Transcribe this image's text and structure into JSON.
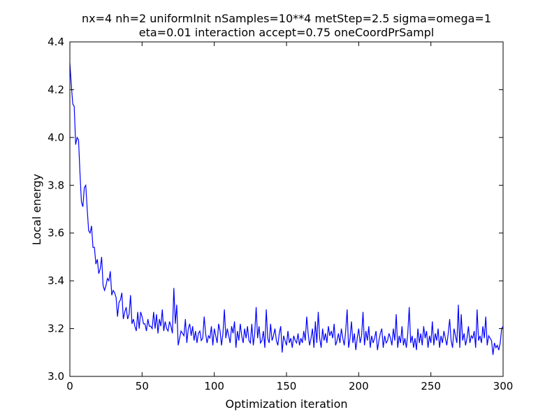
{
  "chart_data": {
    "type": "line",
    "title": [
      "nx=4 nh=2 uniformInit nSamples=10**4 metStep=2.5 sigma=omega=1",
      "eta=0.01 interaction accept=0.75 oneCoordPrSampl"
    ],
    "x_label": "Optimization iteration",
    "y_label": "Local energy",
    "xlim": [
      0,
      300
    ],
    "xticks": [
      0,
      50,
      100,
      150,
      200,
      250,
      300
    ],
    "ylim": [
      3.0,
      4.4
    ],
    "yticks": [
      {
        "value": 3.0,
        "label": "3.0"
      },
      3.2,
      3.4,
      3.6,
      3.8,
      {
        "value": 4.0,
        "label": "4.0"
      },
      4.2,
      4.4
    ],
    "grid": false,
    "x": [
      0,
      1,
      2,
      3,
      4,
      5,
      6,
      7,
      8,
      9,
      10,
      11,
      12,
      13,
      14,
      15,
      16,
      17,
      18,
      19,
      20,
      21,
      22,
      23,
      24,
      25,
      26,
      27,
      28,
      29,
      30,
      31,
      32,
      33,
      34,
      35,
      36,
      37,
      38,
      39,
      40,
      41,
      42,
      43,
      44,
      45,
      46,
      47,
      48,
      49,
      50,
      51,
      52,
      53,
      54,
      55,
      56,
      57,
      58,
      59,
      60,
      61,
      62,
      63,
      64,
      65,
      66,
      67,
      68,
      69,
      70,
      71,
      72,
      73,
      74,
      75,
      76,
      77,
      78,
      79,
      80,
      81,
      82,
      83,
      84,
      85,
      86,
      87,
      88,
      89,
      90,
      91,
      92,
      93,
      94,
      95,
      96,
      97,
      98,
      99,
      100,
      101,
      102,
      103,
      104,
      105,
      106,
      107,
      108,
      109,
      110,
      111,
      112,
      113,
      114,
      115,
      116,
      117,
      118,
      119,
      120,
      121,
      122,
      123,
      124,
      125,
      126,
      127,
      128,
      129,
      130,
      131,
      132,
      133,
      134,
      135,
      136,
      137,
      138,
      139,
      140,
      141,
      142,
      143,
      144,
      145,
      146,
      147,
      148,
      149,
      150,
      151,
      152,
      153,
      154,
      155,
      156,
      157,
      158,
      159,
      160,
      161,
      162,
      163,
      164,
      165,
      166,
      167,
      168,
      169,
      170,
      171,
      172,
      173,
      174,
      175,
      176,
      177,
      178,
      179,
      180,
      181,
      182,
      183,
      184,
      185,
      186,
      187,
      188,
      189,
      190,
      191,
      192,
      193,
      194,
      195,
      196,
      197,
      198,
      199,
      200,
      201,
      202,
      203,
      204,
      205,
      206,
      207,
      208,
      209,
      210,
      211,
      212,
      213,
      214,
      215,
      216,
      217,
      218,
      219,
      220,
      221,
      222,
      223,
      224,
      225,
      226,
      227,
      228,
      229,
      230,
      231,
      232,
      233,
      234,
      235,
      236,
      237,
      238,
      239,
      240,
      241,
      242,
      243,
      244,
      245,
      246,
      247,
      248,
      249,
      250,
      251,
      252,
      253,
      254,
      255,
      256,
      257,
      258,
      259,
      260,
      261,
      262,
      263,
      264,
      265,
      266,
      267,
      268,
      269,
      270,
      271,
      272,
      273,
      274,
      275,
      276,
      277,
      278,
      279,
      280,
      281,
      282,
      283,
      284,
      285,
      286,
      287,
      288,
      289,
      290,
      291,
      292,
      293,
      294,
      295,
      296,
      297,
      298,
      299,
      300
    ],
    "series": [
      {
        "color": "#0000ff",
        "values": [
          4.31,
          4.22,
          4.14,
          4.13,
          3.97,
          4.0,
          3.99,
          3.85,
          3.73,
          3.71,
          3.79,
          3.8,
          3.7,
          3.61,
          3.6,
          3.63,
          3.54,
          3.54,
          3.47,
          3.49,
          3.43,
          3.45,
          3.5,
          3.38,
          3.36,
          3.38,
          3.41,
          3.4,
          3.44,
          3.34,
          3.36,
          3.35,
          3.33,
          3.25,
          3.31,
          3.32,
          3.35,
          3.24,
          3.27,
          3.29,
          3.24,
          3.26,
          3.34,
          3.22,
          3.24,
          3.21,
          3.19,
          3.27,
          3.2,
          3.27,
          3.25,
          3.22,
          3.22,
          3.19,
          3.24,
          3.21,
          3.21,
          3.2,
          3.27,
          3.2,
          3.26,
          3.18,
          3.24,
          3.21,
          3.28,
          3.19,
          3.23,
          3.2,
          3.19,
          3.23,
          3.21,
          3.18,
          3.37,
          3.22,
          3.3,
          3.13,
          3.16,
          3.19,
          3.18,
          3.17,
          3.24,
          3.14,
          3.2,
          3.22,
          3.17,
          3.21,
          3.15,
          3.19,
          3.14,
          3.18,
          3.19,
          3.15,
          3.16,
          3.25,
          3.18,
          3.14,
          3.17,
          3.16,
          3.21,
          3.13,
          3.2,
          3.17,
          3.14,
          3.22,
          3.19,
          3.13,
          3.18,
          3.28,
          3.16,
          3.2,
          3.17,
          3.14,
          3.21,
          3.18,
          3.23,
          3.12,
          3.19,
          3.15,
          3.22,
          3.17,
          3.14,
          3.2,
          3.16,
          3.21,
          3.15,
          3.14,
          3.22,
          3.13,
          3.18,
          3.29,
          3.16,
          3.21,
          3.14,
          3.15,
          3.19,
          3.12,
          3.28,
          3.16,
          3.14,
          3.22,
          3.15,
          3.17,
          3.2,
          3.15,
          3.13,
          3.18,
          3.21,
          3.1,
          3.17,
          3.15,
          3.13,
          3.19,
          3.14,
          3.16,
          3.12,
          3.17,
          3.15,
          3.14,
          3.18,
          3.13,
          3.16,
          3.14,
          3.19,
          3.15,
          3.25,
          3.18,
          3.13,
          3.16,
          3.2,
          3.12,
          3.23,
          3.14,
          3.27,
          3.16,
          3.12,
          3.2,
          3.15,
          3.18,
          3.14,
          3.21,
          3.17,
          3.19,
          3.16,
          3.22,
          3.13,
          3.15,
          3.18,
          3.14,
          3.2,
          3.16,
          3.13,
          3.19,
          3.28,
          3.12,
          3.16,
          3.23,
          3.14,
          3.18,
          3.11,
          3.16,
          3.2,
          3.14,
          3.17,
          3.27,
          3.13,
          3.19,
          3.15,
          3.21,
          3.12,
          3.17,
          3.14,
          3.16,
          3.19,
          3.11,
          3.15,
          3.18,
          3.2,
          3.12,
          3.17,
          3.14,
          3.15,
          3.18,
          3.16,
          3.13,
          3.2,
          3.15,
          3.26,
          3.12,
          3.17,
          3.14,
          3.21,
          3.13,
          3.16,
          3.12,
          3.18,
          3.29,
          3.14,
          3.17,
          3.12,
          3.16,
          3.11,
          3.2,
          3.14,
          3.18,
          3.13,
          3.21,
          3.16,
          3.19,
          3.12,
          3.17,
          3.14,
          3.23,
          3.13,
          3.18,
          3.15,
          3.2,
          3.12,
          3.17,
          3.14,
          3.19,
          3.16,
          3.13,
          3.18,
          3.24,
          3.15,
          3.12,
          3.2,
          3.17,
          3.14,
          3.3,
          3.12,
          3.26,
          3.15,
          3.18,
          3.13,
          3.16,
          3.21,
          3.14,
          3.17,
          3.16,
          3.19,
          3.12,
          3.28,
          3.15,
          3.17,
          3.14,
          3.21,
          3.16,
          3.25,
          3.13,
          3.17,
          3.16,
          3.15,
          3.09,
          3.14,
          3.12,
          3.13,
          3.11,
          3.14,
          3.2,
          3.21
        ]
      }
    ]
  }
}
